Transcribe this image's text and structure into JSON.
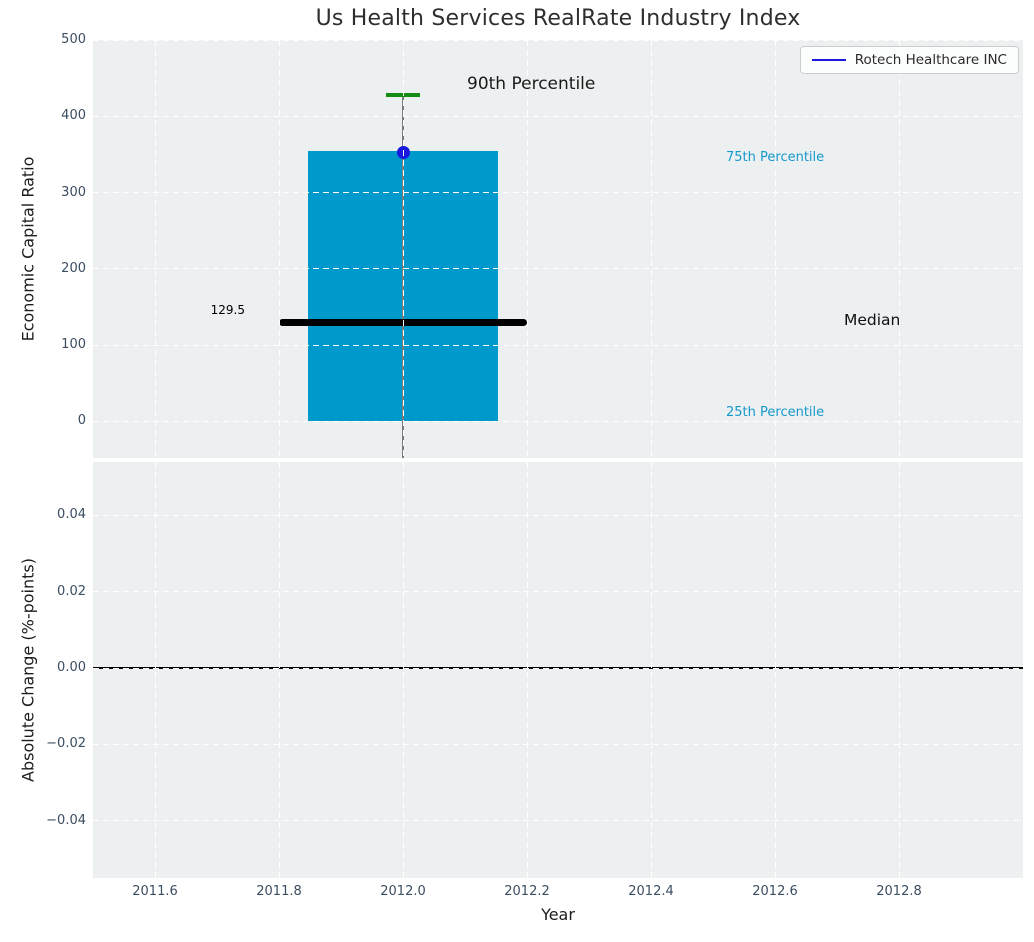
{
  "title": "Us Health Services RealRate Industry Index",
  "legend": {
    "series_label": "Rotech Healthcare INC"
  },
  "top_axis": {
    "ylabel": "Economic Capital Ratio",
    "ytick_labels": [
      "0",
      "100",
      "200",
      "300",
      "400",
      "500"
    ],
    "annotations": {
      "p90_label": "90th Percentile",
      "p75_label": "75th Percentile",
      "median_label": "Median",
      "p25_label": "25th Percentile",
      "median_value_label": "129.5"
    }
  },
  "bottom_axis": {
    "ylabel": "Absolute Change (%-points)",
    "ytick_labels": [
      "−0.04",
      "−0.02",
      "0.00",
      "0.02",
      "0.04"
    ]
  },
  "x_axis": {
    "label": "Year",
    "tick_labels": [
      "2011.6",
      "2011.8",
      "2012.0",
      "2012.2",
      "2012.4",
      "2012.6",
      "2012.8"
    ]
  },
  "colors": {
    "figure_bg": "#ffffff",
    "plot_bg": "#ecf0f1",
    "grid": "#ffffff",
    "box_fill": "#0099cb",
    "median_line": "#000000",
    "whisker": "#7a7a7a",
    "p90_cap": "#148c14",
    "company_marker": "#1a1adf",
    "legend_line": "#1a1adf",
    "percentile_text": "#1799ce",
    "tick_text": "#3b4d61"
  },
  "chart_data": [
    {
      "type": "boxplot",
      "title": "Us Health Services RealRate Industry Index",
      "xlabel": "Year",
      "ylabel": "Economic Capital Ratio",
      "x": 2012.0,
      "box": {
        "p25": 0,
        "median": 129.5,
        "p75": 354,
        "p90_whisker_high": 428,
        "whisker_low": "extends below axis (clipped)"
      },
      "box_width_years": 0.305,
      "median_line_width_years": 0.4,
      "cap_width_years": 0.055,
      "marker": {
        "name": "Rotech Healthcare INC",
        "x": 2012.0,
        "y": 353
      },
      "xlim": [
        2011.5,
        2013.0
      ],
      "ylim": [
        -48,
        500
      ],
      "xticks": [
        2011.6,
        2011.8,
        2012.0,
        2012.2,
        2012.4,
        2012.6,
        2012.8
      ],
      "yticks": [
        0,
        100,
        200,
        300,
        400,
        500
      ],
      "grid": true,
      "legend_position": "upper right"
    },
    {
      "type": "line",
      "xlabel": "Year",
      "ylabel": "Absolute Change (%-points)",
      "series": [],
      "zero_line_y": 0.0,
      "xlim": [
        2011.5,
        2013.0
      ],
      "ylim": [
        -0.055,
        0.054
      ],
      "xticks": [
        2011.6,
        2011.8,
        2012.0,
        2012.2,
        2012.4,
        2012.6,
        2012.8
      ],
      "yticks": [
        -0.04,
        -0.02,
        0.0,
        0.02,
        0.04
      ],
      "grid": true
    }
  ]
}
